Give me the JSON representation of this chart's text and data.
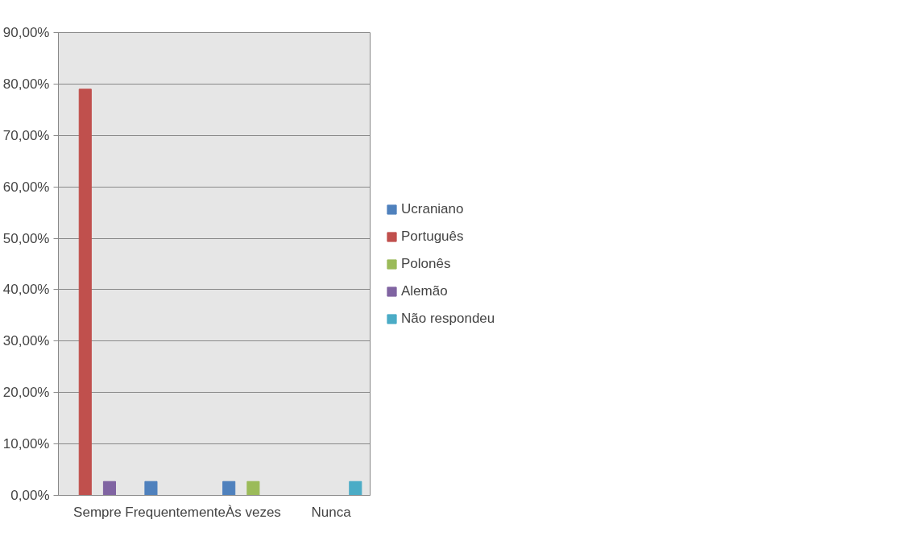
{
  "chart_data": {
    "type": "bar",
    "categories": [
      "Sempre",
      "Frequentemente",
      "Às vezes",
      "Nunca"
    ],
    "series": [
      {
        "name": "Ucraniano",
        "color": "#4f81bd",
        "values": [
          null,
          2.7,
          2.7,
          null
        ]
      },
      {
        "name": "Português",
        "color": "#c0504d",
        "values": [
          79,
          null,
          null,
          null
        ]
      },
      {
        "name": "Polonês",
        "color": "#9bbb59",
        "values": [
          null,
          null,
          2.7,
          null
        ]
      },
      {
        "name": "Alemão",
        "color": "#8064a2",
        "values": [
          2.7,
          null,
          null,
          null
        ]
      },
      {
        "name": "Não respondeu",
        "color": "#4bacc6",
        "values": [
          null,
          null,
          null,
          2.7
        ]
      }
    ],
    "ylim": [
      0,
      90
    ],
    "yticks": [
      {
        "value": 0,
        "label": "0,00%"
      },
      {
        "value": 10,
        "label": "10,00%"
      },
      {
        "value": 20,
        "label": "20,00%"
      },
      {
        "value": 30,
        "label": "30,00%"
      },
      {
        "value": 40,
        "label": "40,00%"
      },
      {
        "value": 50,
        "label": "50,00%"
      },
      {
        "value": 60,
        "label": "60,00%"
      },
      {
        "value": 70,
        "label": "70,00%"
      },
      {
        "value": 80,
        "label": "80,00%"
      },
      {
        "value": 90,
        "label": "90,00%"
      }
    ],
    "grid": "y",
    "legend": "right"
  }
}
